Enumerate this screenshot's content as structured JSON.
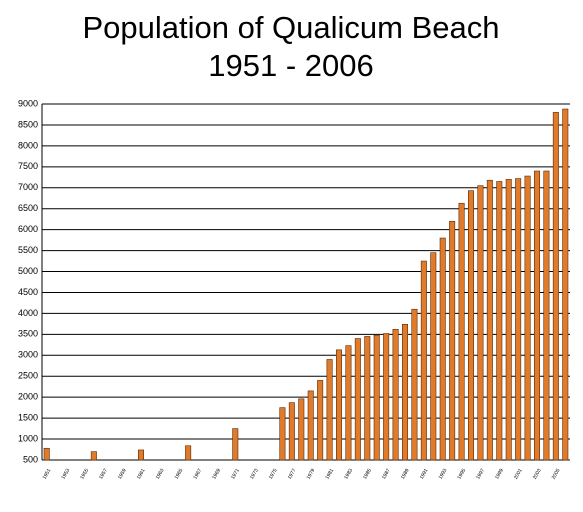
{
  "chart_data": {
    "type": "bar",
    "title": "Population of Qualicum Beach",
    "subtitle": "1951 - 2006",
    "categories": [
      "1951",
      null,
      "1953",
      null,
      "1955",
      null,
      "1957",
      null,
      "1959",
      null,
      "1961",
      null,
      "1963",
      null,
      "1965",
      null,
      "1967",
      null,
      "1969",
      null,
      "1971",
      null,
      "1973",
      null,
      "1975",
      null,
      "1977",
      null,
      "1979",
      null,
      "1981",
      null,
      "1983",
      null,
      "1985",
      null,
      "1987",
      null,
      "1989",
      null,
      "1991",
      null,
      "1993",
      null,
      "1995",
      null,
      "1997",
      null,
      "1999",
      null,
      "2001",
      null,
      "2003",
      null,
      "2005",
      null
    ],
    "values": [
      780,
      null,
      null,
      null,
      null,
      700,
      null,
      null,
      null,
      null,
      740,
      null,
      null,
      null,
      null,
      840,
      null,
      null,
      null,
      null,
      1250,
      null,
      null,
      null,
      null,
      1750,
      1870,
      1960,
      2150,
      2400,
      2900,
      3130,
      3230,
      3400,
      3450,
      3480,
      3520,
      3620,
      3740,
      4100,
      5250,
      5450,
      5800,
      6200,
      6630,
      6930,
      7050,
      7180,
      7150,
      7200,
      7220,
      7280,
      7400,
      7400,
      8800,
      8880
    ],
    "color": "#e07b2c",
    "ylim": [
      500,
      9000
    ],
    "yticks": [
      500,
      1000,
      1500,
      2000,
      2500,
      3000,
      3500,
      4000,
      4500,
      5000,
      5500,
      6000,
      6500,
      7000,
      7500,
      8000,
      8500,
      9000
    ],
    "grid": true
  }
}
